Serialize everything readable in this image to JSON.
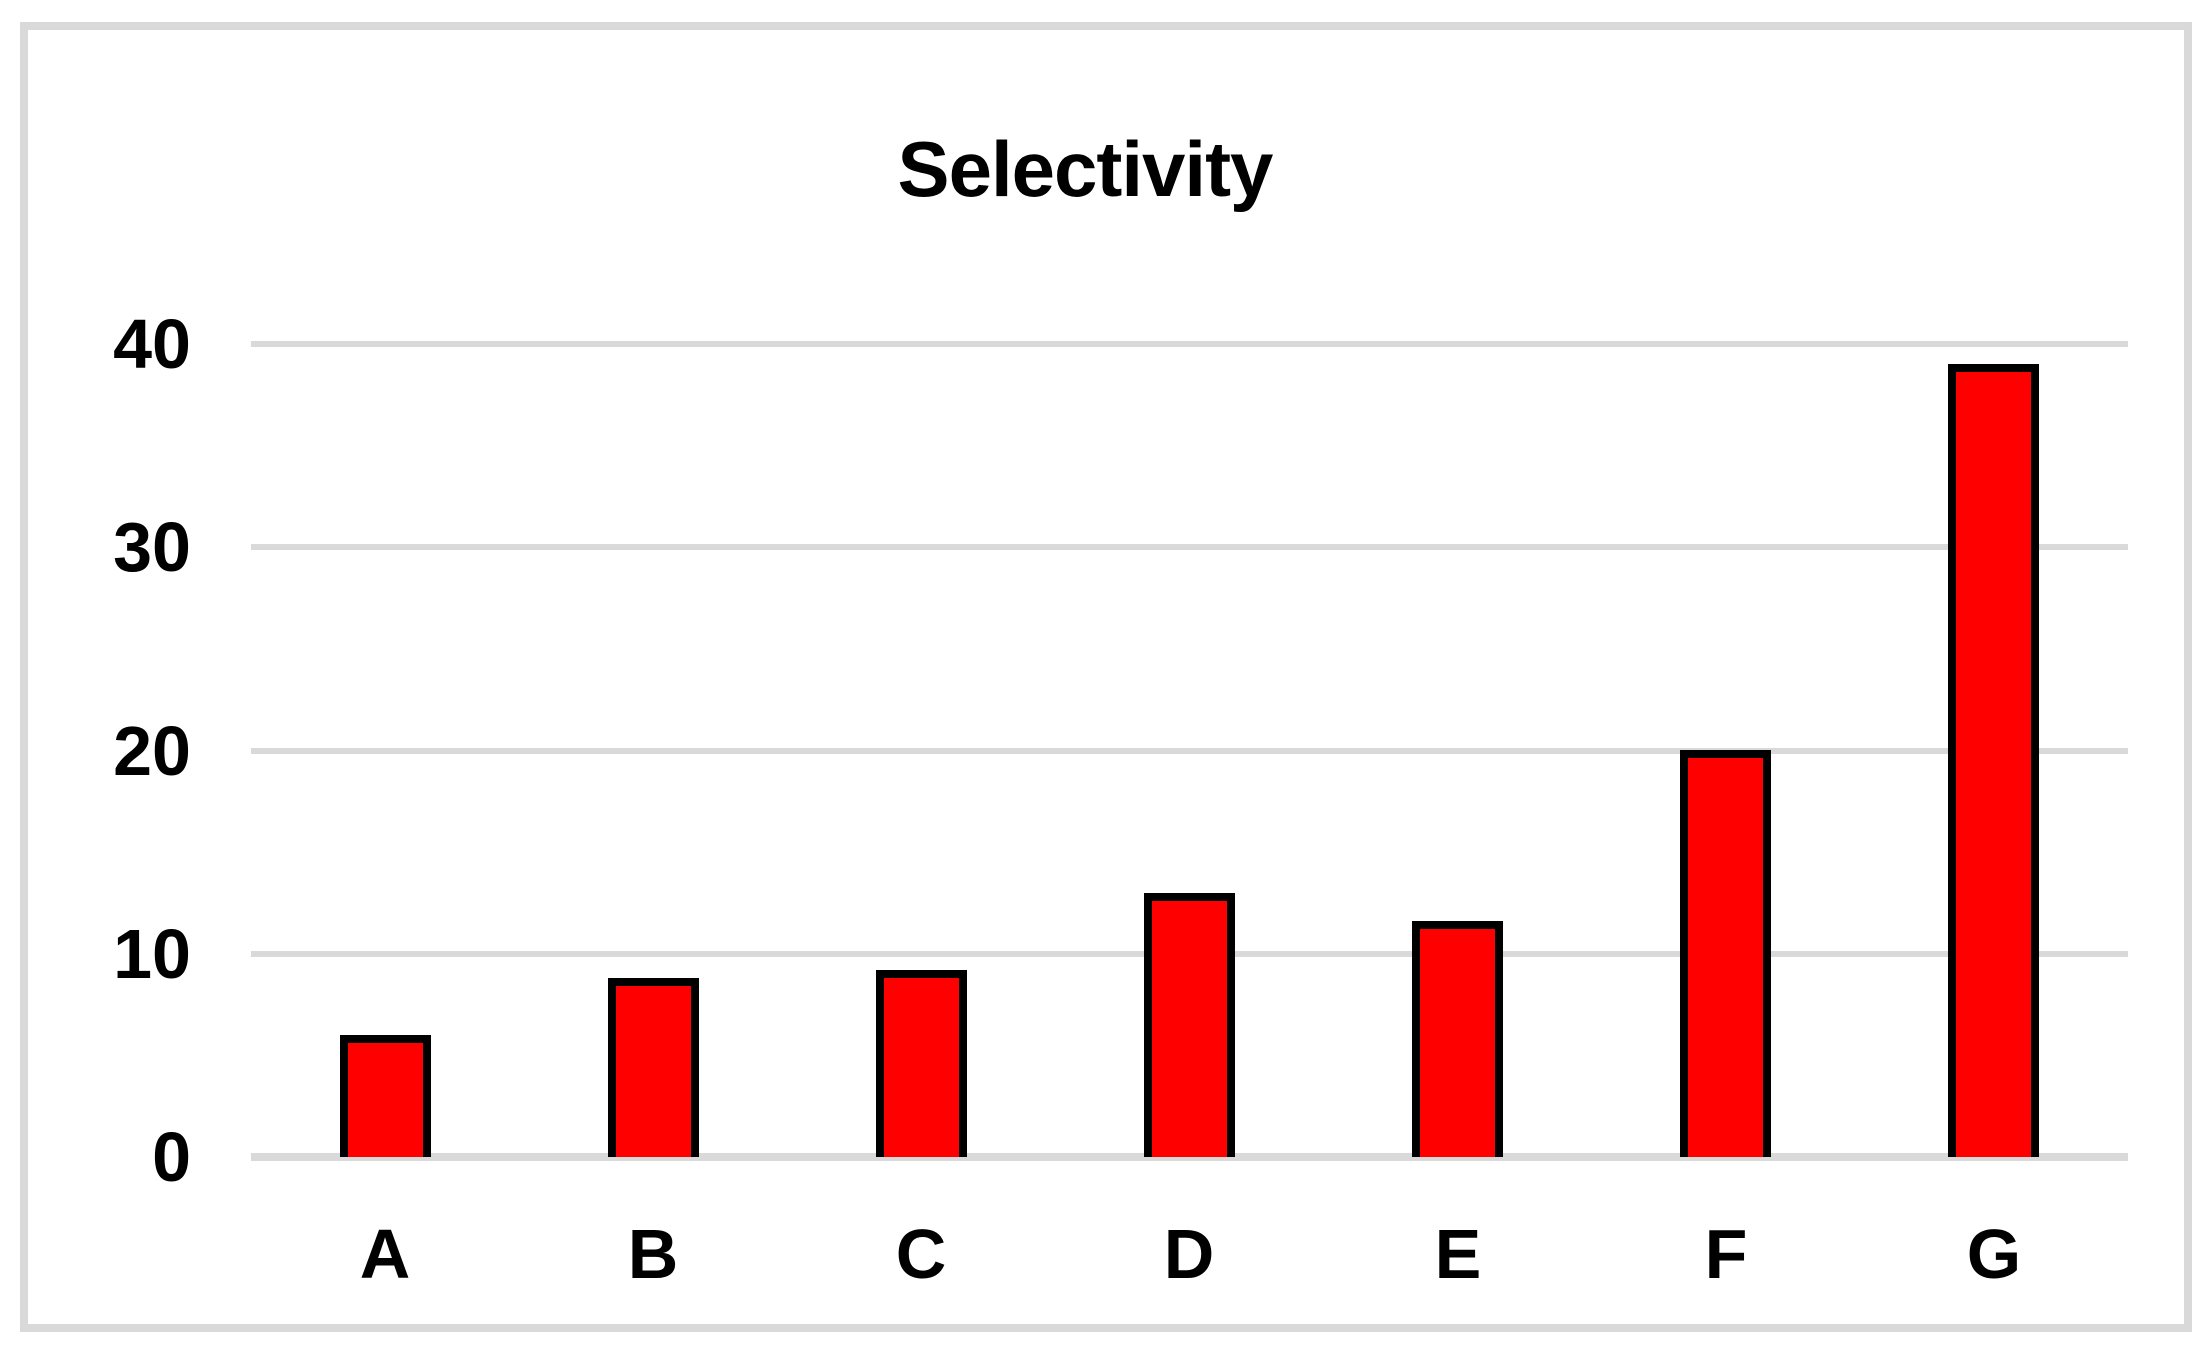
{
  "chart_data": {
    "type": "bar",
    "title": "Selectivity",
    "categories": [
      "A",
      "B",
      "C",
      "D",
      "E",
      "F",
      "G"
    ],
    "values": [
      6,
      8.8,
      9.2,
      13,
      11.6,
      20,
      39
    ],
    "yticks": [
      0,
      10,
      20,
      30,
      40
    ],
    "ylim": [
      0,
      40
    ],
    "xlabel": "",
    "ylabel": "",
    "grid": true,
    "legend": false,
    "colors": {
      "bar_fill": "#ff0000",
      "bar_border": "#000000",
      "gridline": "#d9d9d9",
      "frame_border": "#d9d9d9",
      "background": "#ffffff",
      "text": "#000000"
    }
  }
}
